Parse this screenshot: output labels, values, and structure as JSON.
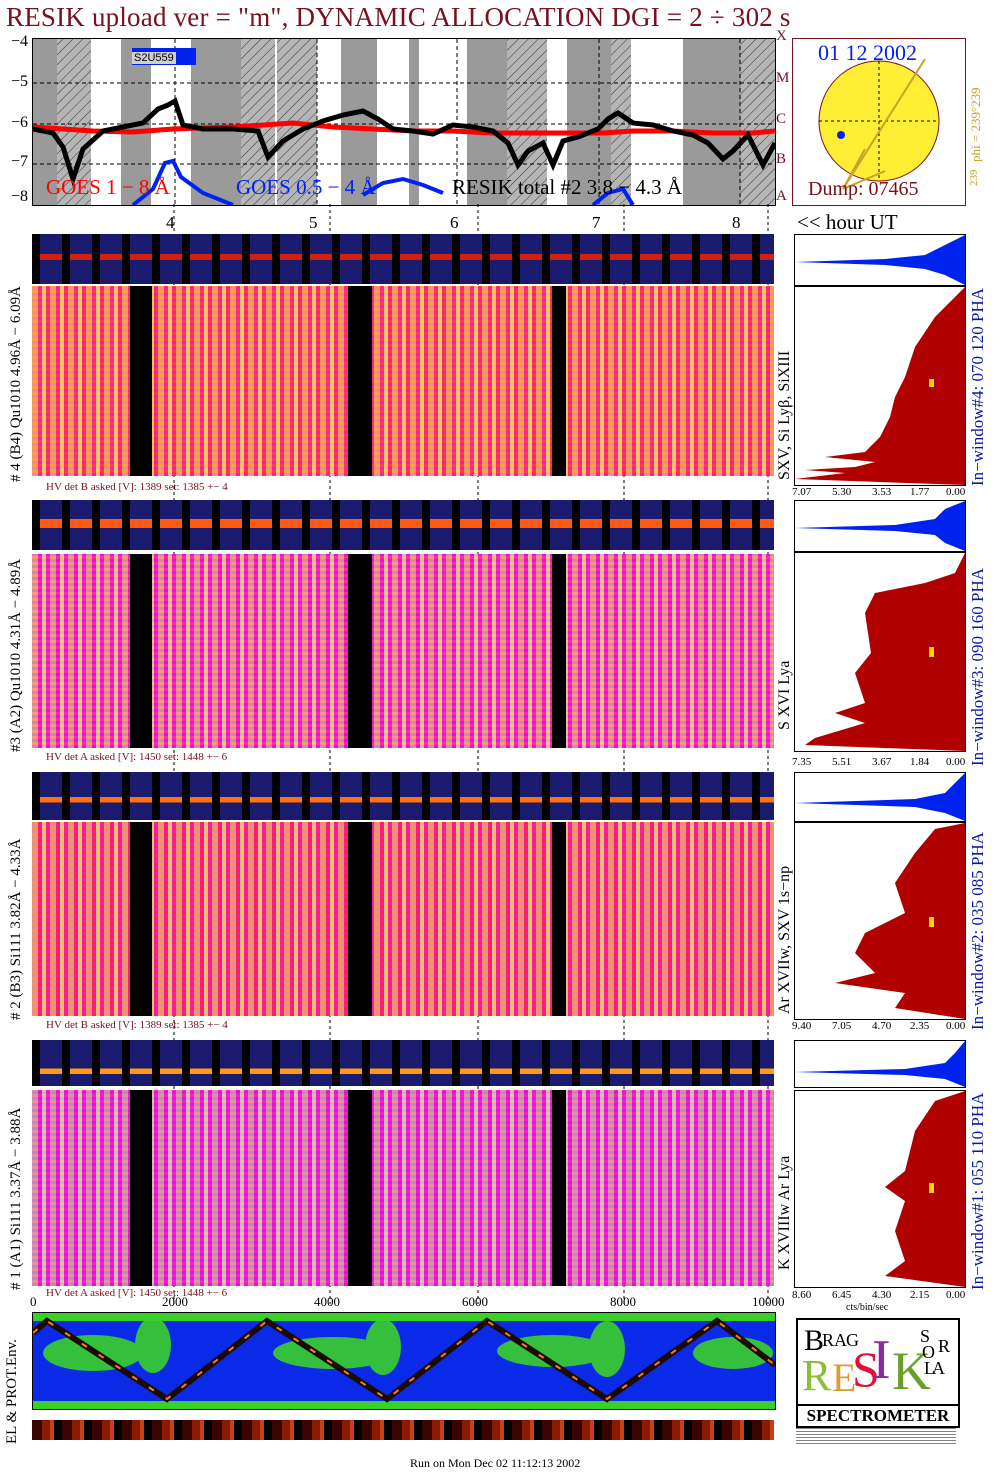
{
  "title": "RESIK upload ver = \"m\", DYNAMIC ALLOCATION  DGI =   2 ÷ 302 s",
  "top_plot": {
    "y_ticks": [
      "−4",
      "−5",
      "−6",
      "−7",
      "−8"
    ],
    "flare_classes": [
      "X",
      "M",
      "C",
      "B",
      "A"
    ],
    "legend_goes_long": "GOES 1 − 8 Å",
    "legend_goes_short": "GOES 0.5 − 4 Å",
    "legend_resik": "RESIK total #2  3.8 − 4.3 Å",
    "marker_label": "S2U559",
    "colors": {
      "goes_long": "#ff0000",
      "goes_short": "#0022ee",
      "resik": "#000000",
      "eclipse_gray": "#9a9a9a"
    }
  },
  "sun_panel": {
    "date": "01 12 2002",
    "dump": "Dump: 07465",
    "phi_label": "phi = 239°239",
    "phi_bottom": "239",
    "colors": {
      "disk": "#ffee33",
      "ring": "#7a0f1e"
    }
  },
  "hours": [
    "4",
    "5",
    "6",
    "7",
    "8"
  ],
  "hour_axis_label": "<< hour UT",
  "detectors": [
    {
      "label": "# 4 (B4) Qu1010 4.96Å − 6.09Å",
      "line_label": "SXV, Si Lyβ, SiXIII",
      "side_label": "In−window#4:  070 120 PHA",
      "hv": "HV det B asked [V]:  1389 set:  1385 +−    4",
      "pha_ticks": [
        "7.07",
        "5.30",
        "3.53",
        "1.77",
        "0.00"
      ]
    },
    {
      "label": "#3 (A2) Qu1010  4.31Å − 4.89Å",
      "line_label": "S XVI Lya",
      "side_label": "In−window#3:  090 160 PHA",
      "hv": "HV det A asked [V]:  1450 set:  1448 +−    6",
      "pha_ticks": [
        "7.35",
        "5.51",
        "3.67",
        "1.84",
        "0.00"
      ]
    },
    {
      "label": "# 2 (B3) Si111  3.82Å − 4.33Å",
      "line_label": "Ar XVIIw, SXV 1s−np",
      "side_label": "In−window#2:  035 085 PHA",
      "hv": "HV det B asked [V]:  1389 set:  1385 +−    4",
      "pha_ticks": [
        "9.40",
        "7.05",
        "4.70",
        "2.35",
        "0.00"
      ]
    },
    {
      "label": "# 1 (A1) Si111  3.37Å − 3.88Å",
      "line_label": "K XVIIIw  Ar Lya",
      "side_label": "In−window#1:  055 110 PHA",
      "hv": "HV det A asked [V]:  1450 set:  1448 +−    6",
      "pha_ticks": [
        "8.60",
        "6.45",
        "4.30",
        "2.15",
        "0.00"
      ],
      "pha_unit": "cts/bin/sec"
    }
  ],
  "bottom_axis": [
    "0",
    "2000",
    "4000",
    "6000",
    "8000",
    "10000"
  ],
  "env_label": "EL & PROT.Env.",
  "logo": {
    "letters": [
      "B",
      "R",
      "A",
      "G",
      "R",
      "E",
      "S",
      "I",
      "K",
      "S",
      "O",
      "L",
      "A",
      "R"
    ],
    "banner": "SPECTROMETER"
  },
  "footer": "Run on Mon Dec 02 11:12:13 2002"
}
